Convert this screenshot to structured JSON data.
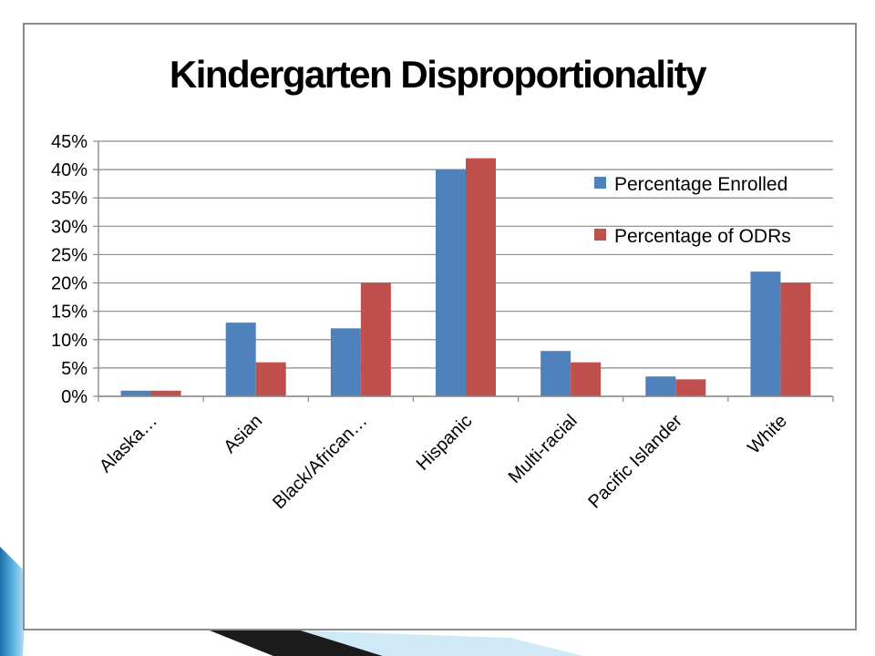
{
  "chart_data": {
    "type": "bar",
    "title": "Kindergarten Disproportionality",
    "xlabel": "",
    "ylabel": "",
    "ylim": [
      0,
      45
    ],
    "y_ticks": [
      "0%",
      "5%",
      "10%",
      "15%",
      "20%",
      "25%",
      "30%",
      "35%",
      "40%",
      "45%"
    ],
    "grid": true,
    "legend_position": "right, inside plot",
    "categories": [
      "Alaska…",
      "Asian",
      "Black/African…",
      "Hispanic",
      "Multi-racial",
      "Pacific Islander",
      "White"
    ],
    "series": [
      {
        "name": "Percentage Enrolled",
        "color": "#4f81bd",
        "values": [
          1,
          13,
          12,
          40,
          8,
          3.5,
          22
        ]
      },
      {
        "name": "Percentage of ODRs",
        "color": "#c0504d",
        "values": [
          1,
          6,
          20,
          42,
          6,
          3,
          20
        ]
      }
    ]
  }
}
